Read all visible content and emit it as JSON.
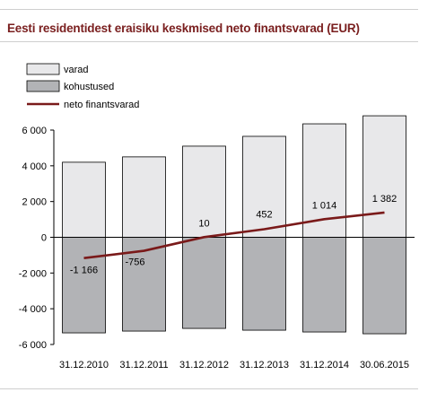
{
  "title": "Eesti residentidest eraisiku keskmised neto finantsvarad (EUR)",
  "colors": {
    "assets": "#e8e8ea",
    "liabilities": "#b2b3b6",
    "line": "#7a1a1a",
    "title": "#7a1f1f"
  },
  "chart_data": {
    "type": "bar",
    "title": "Eesti residentidest eraisiku keskmised neto finantsvarad (EUR)",
    "categories": [
      "31.12.2010",
      "31.12.2011",
      "31.12.2012",
      "31.12.2013",
      "31.12.2014",
      "30.06.2015"
    ],
    "series": [
      {
        "name": "varad",
        "type": "bar",
        "values": [
          4200,
          4500,
          5100,
          5650,
          6350,
          6800
        ]
      },
      {
        "name": "kohustused",
        "type": "bar",
        "values": [
          -5350,
          -5250,
          -5100,
          -5200,
          -5300,
          -5400
        ]
      },
      {
        "name": "neto finantsvarad",
        "type": "line",
        "values": [
          -1166,
          -756,
          10,
          452,
          1014,
          1382
        ],
        "labels": [
          "-1 166",
          "-756",
          "10",
          "452",
          "1 014",
          "1 382"
        ]
      }
    ],
    "ylim": [
      -6000,
      6000
    ],
    "yticks": [
      6000,
      4000,
      2000,
      0,
      -2000,
      -4000,
      -6000
    ],
    "ytick_labels": [
      "6 000",
      "4 000",
      "2 000",
      "0",
      "-2 000",
      "-4 000",
      "-6 000"
    ],
    "legend": {
      "position": "top-left",
      "entries": [
        "varad",
        "kohustused",
        "neto finantsvarad"
      ]
    },
    "grid": false
  }
}
